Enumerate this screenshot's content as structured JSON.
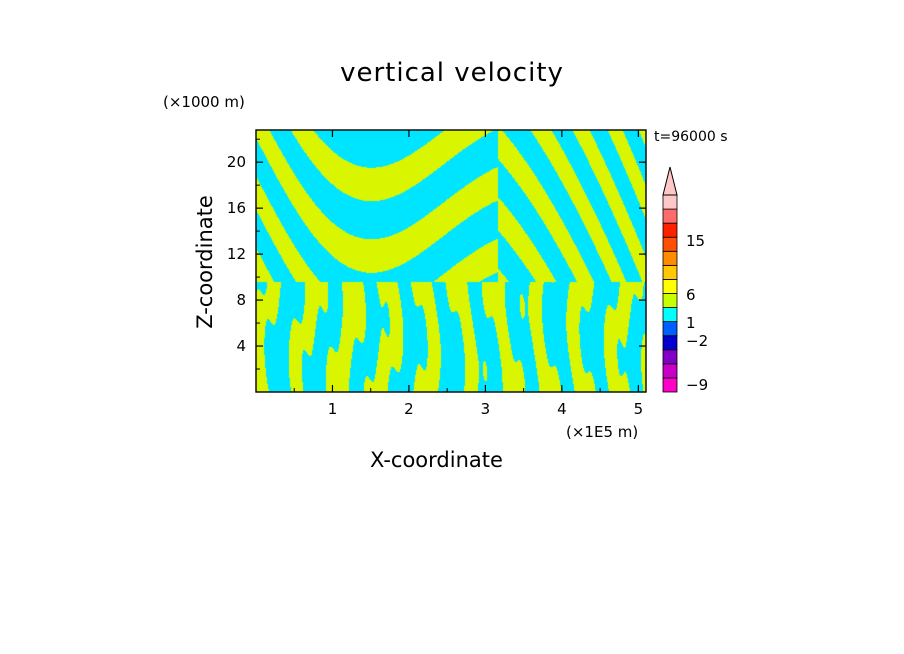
{
  "chart_data": {
    "type": "heatmap",
    "title": "vertical velocity",
    "xlabel": "X-coordinate",
    "ylabel": "Z-coordinate",
    "x_unit": "(×1E5 m)",
    "z_unit": "(×1000 m)",
    "time_label": "t=96000 s",
    "xlim": [
      0,
      5.1
    ],
    "ylim": [
      0,
      22.8
    ],
    "x_ticks": [
      1,
      2,
      3,
      4,
      5
    ],
    "y_ticks": [
      4,
      8,
      12,
      16,
      20
    ],
    "colorbar": {
      "tick_labels": [
        "15",
        "6",
        "1",
        "−2",
        "−9"
      ],
      "colors": [
        "#ff00c8",
        "#c800c8",
        "#8000c8",
        "#0000d0",
        "#0060ff",
        "#00ffff",
        "#c8ff00",
        "#ffff00",
        "#ffc800",
        "#ff8c00",
        "#ff5000",
        "#ff2000",
        "#ff6a6a",
        "#ffc8c8"
      ]
    },
    "dominant_colors": {
      "updraft": "#d9f500",
      "downdraft": "#00e5ff"
    }
  }
}
